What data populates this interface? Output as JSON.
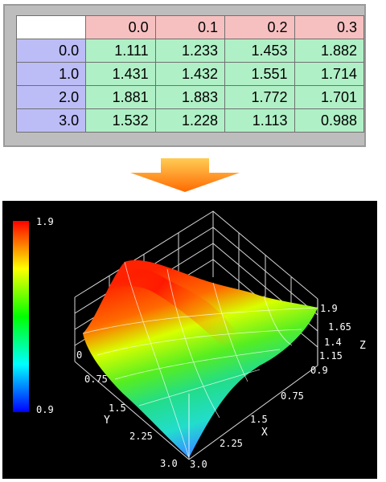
{
  "table": {
    "corner": "",
    "columns": [
      "0.0",
      "0.1",
      "0.2",
      "0.3"
    ],
    "rows": [
      {
        "label": "0.0",
        "values": [
          "1.111",
          "1.233",
          "1.453",
          "1.882"
        ]
      },
      {
        "label": "1.0",
        "values": [
          "1.431",
          "1.432",
          "1.551",
          "1.714"
        ]
      },
      {
        "label": "2.0",
        "values": [
          "1.881",
          "1.883",
          "1.772",
          "1.701"
        ]
      },
      {
        "label": "3.0",
        "values": [
          "1.532",
          "1.228",
          "1.113",
          "0.988"
        ]
      }
    ]
  },
  "colors": {
    "column_header_bg": "#f7c0c0",
    "row_header_bg": "#bcbcf7",
    "cell_bg": "#b0f0c6",
    "panel_bg": "#bdbdbd",
    "arrow": "#ff8a00",
    "plot_bg": "#000000"
  },
  "arrow_icon": "down-arrow-icon",
  "chart_data": {
    "type": "surface",
    "colorbar": {
      "max_label": "1.9",
      "min_label": "0.9",
      "colors": [
        "#ff0000",
        "#ffff00",
        "#00ff00",
        "#00ffff",
        "#0000ff"
      ]
    },
    "x_axis": {
      "label": "X",
      "ticks": [
        "0.75",
        "1.5",
        "2.25",
        "3.0"
      ]
    },
    "y_axis": {
      "label": "Y",
      "ticks": [
        "0",
        "0.75",
        "1.5",
        "2.25",
        "3.0"
      ]
    },
    "z_axis": {
      "label": "Z",
      "ticks": [
        "1.9",
        "1.65",
        "1.4",
        "1.15",
        "0.9"
      ]
    },
    "zlim": [
      0.9,
      1.9
    ]
  }
}
